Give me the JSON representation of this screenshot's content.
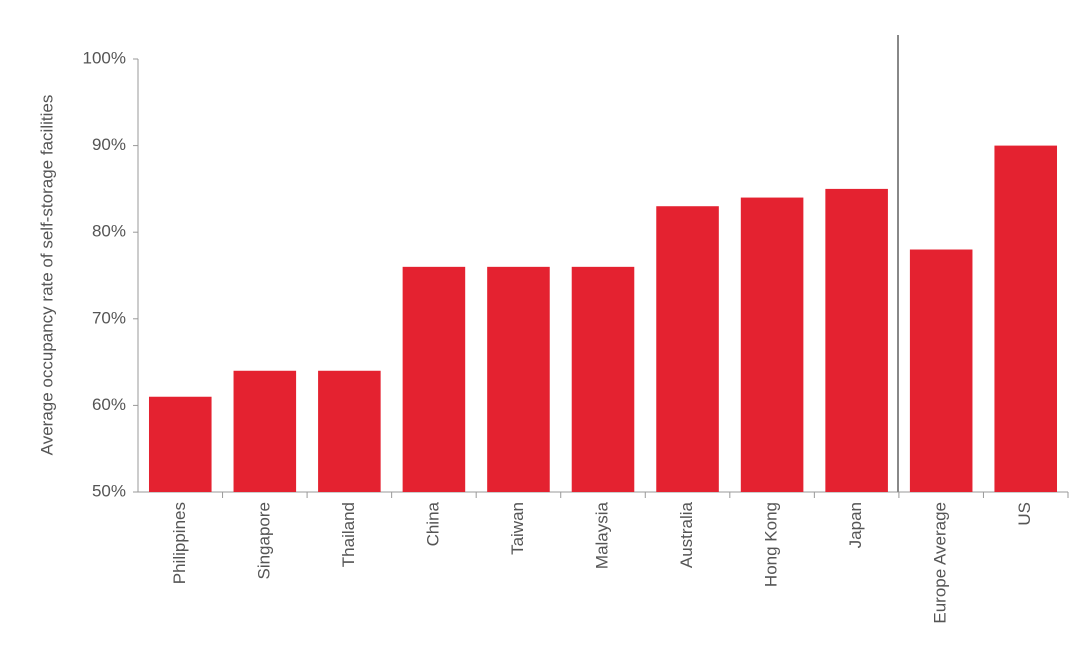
{
  "chart_data": {
    "type": "bar",
    "y_label": "Average occupancy rate of self-storage facilities",
    "categories": [
      "Philippines",
      "Singapore",
      "Thailand",
      "China",
      "Taiwan",
      "Malaysia",
      "Australia",
      "Hong Kong",
      "Japan",
      "Europe Average",
      "US"
    ],
    "values": [
      61,
      64,
      64,
      76,
      76,
      76,
      83,
      84,
      85,
      78,
      90
    ],
    "color": "#e42230",
    "ylim": [
      50,
      100
    ],
    "yticks": [
      {
        "value": 50,
        "label": "50%"
      },
      {
        "value": 60,
        "label": "60%"
      },
      {
        "value": 70,
        "label": "70%"
      },
      {
        "value": 80,
        "label": "80%"
      },
      {
        "value": 90,
        "label": "90%"
      },
      {
        "value": 100,
        "label": "100%"
      }
    ],
    "grid": false
  }
}
